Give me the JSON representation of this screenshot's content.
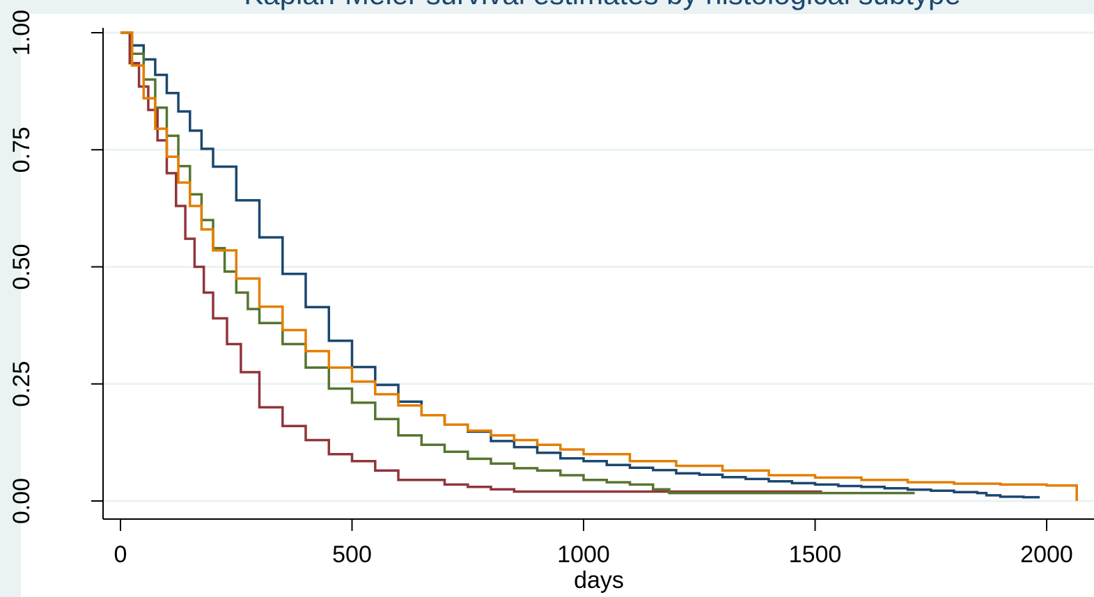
{
  "chart_data": {
    "type": "line",
    "title": "Kaplan-Meier survival estimates by histological subtype",
    "xlabel": "days",
    "ylabel": "",
    "xlim": [
      -40,
      2080
    ],
    "ylim": [
      -0.037,
      1.0
    ],
    "x_ticks": [
      0,
      500,
      1000,
      1500,
      2000
    ],
    "x_tick_labels": [
      "0",
      "500",
      "1000",
      "1500",
      "2000"
    ],
    "y_ticks": [
      0,
      0.25,
      0.5,
      0.75,
      1.0
    ],
    "y_tick_labels": [
      "0.00",
      "0.25",
      "0.50",
      "0.75",
      "1.00"
    ],
    "grid": true,
    "step": true,
    "series": [
      {
        "color": "#1a476f",
        "x": [
          0,
          25,
          50,
          75,
          100,
          125,
          150,
          175,
          200,
          250,
          300,
          350,
          400,
          450,
          500,
          550,
          600,
          650,
          700,
          750,
          800,
          850,
          900,
          950,
          1000,
          1050,
          1100,
          1150,
          1200,
          1250,
          1300,
          1350,
          1400,
          1450,
          1500,
          1550,
          1600,
          1650,
          1700,
          1750,
          1800,
          1850,
          1870,
          1900,
          1950,
          1985
        ],
        "y": [
          1.0,
          0.973,
          0.943,
          0.91,
          0.871,
          0.832,
          0.791,
          0.752,
          0.714,
          0.642,
          0.563,
          0.485,
          0.414,
          0.342,
          0.286,
          0.248,
          0.212,
          0.183,
          0.163,
          0.148,
          0.128,
          0.115,
          0.103,
          0.091,
          0.085,
          0.077,
          0.071,
          0.066,
          0.059,
          0.056,
          0.051,
          0.047,
          0.042,
          0.038,
          0.035,
          0.032,
          0.03,
          0.027,
          0.024,
          0.022,
          0.019,
          0.017,
          0.012,
          0.009,
          0.008,
          0.008
        ]
      },
      {
        "color": "#90353b",
        "x": [
          0,
          20,
          40,
          60,
          80,
          100,
          120,
          140,
          160,
          180,
          200,
          230,
          260,
          300,
          350,
          400,
          450,
          500,
          550,
          600,
          700,
          750,
          800,
          850,
          900,
          1000,
          1100,
          1200,
          1300,
          1400,
          1515
        ],
        "y": [
          1.0,
          0.935,
          0.885,
          0.835,
          0.77,
          0.7,
          0.63,
          0.56,
          0.5,
          0.445,
          0.39,
          0.335,
          0.275,
          0.2,
          0.16,
          0.13,
          0.1,
          0.085,
          0.065,
          0.045,
          0.035,
          0.03,
          0.025,
          0.02,
          0.02,
          0.02,
          0.02,
          0.02,
          0.02,
          0.02,
          0.02
        ]
      },
      {
        "color": "#55752f",
        "x": [
          0,
          25,
          50,
          75,
          100,
          125,
          150,
          175,
          200,
          225,
          250,
          275,
          300,
          350,
          400,
          450,
          500,
          550,
          600,
          650,
          700,
          750,
          800,
          850,
          900,
          950,
          1000,
          1050,
          1100,
          1150,
          1185,
          1300,
          1500,
          1715
        ],
        "y": [
          1.0,
          0.955,
          0.9,
          0.84,
          0.78,
          0.715,
          0.655,
          0.6,
          0.54,
          0.49,
          0.445,
          0.41,
          0.38,
          0.335,
          0.285,
          0.24,
          0.21,
          0.175,
          0.14,
          0.12,
          0.105,
          0.09,
          0.08,
          0.07,
          0.065,
          0.055,
          0.045,
          0.04,
          0.035,
          0.025,
          0.017,
          0.017,
          0.017,
          0.017
        ]
      },
      {
        "color": "#e37e00",
        "x": [
          0,
          25,
          50,
          75,
          100,
          125,
          150,
          175,
          200,
          250,
          300,
          350,
          400,
          450,
          500,
          550,
          600,
          650,
          700,
          750,
          800,
          850,
          900,
          950,
          1000,
          1100,
          1200,
          1300,
          1400,
          1500,
          1600,
          1700,
          1800,
          1900,
          2000,
          2065
        ],
        "y": [
          1.0,
          0.93,
          0.86,
          0.795,
          0.735,
          0.68,
          0.63,
          0.58,
          0.535,
          0.475,
          0.415,
          0.365,
          0.32,
          0.285,
          0.255,
          0.228,
          0.204,
          0.183,
          0.163,
          0.15,
          0.14,
          0.13,
          0.12,
          0.11,
          0.1,
          0.085,
          0.075,
          0.065,
          0.055,
          0.05,
          0.045,
          0.04,
          0.037,
          0.035,
          0.033,
          0.033
        ]
      }
    ],
    "final_drop": {
      "series_index": 3,
      "x": 2065,
      "y_to": 0.0
    }
  }
}
